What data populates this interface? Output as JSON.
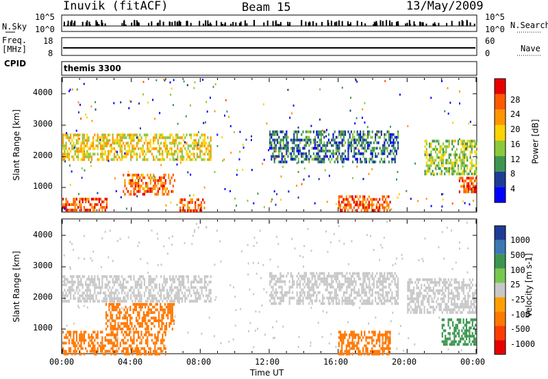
{
  "header": {
    "station": "Inuvik (fitACF)",
    "beam": "Beam 15",
    "date": "13/May/2009"
  },
  "panels": {
    "nsky_label": "N.Sky",
    "nsky_ticks": [
      "10^5",
      "10^0"
    ],
    "nsearch_label": "N.Search",
    "nsearch_ticks": [
      "10^5",
      "10^0"
    ],
    "freq_label_1": "Freq.",
    "freq_label_2": "[MHz]",
    "freq_ticks": [
      "18",
      "8"
    ],
    "nave_label": "Nave",
    "nave_ticks": [
      "60",
      "0"
    ],
    "cpid_label": "CPID",
    "cpid_value": "themis 3300"
  },
  "x_axis": {
    "label": "Time UT",
    "ticks": [
      "00:00",
      "04:00",
      "08:00",
      "12:00",
      "16:00",
      "20:00",
      "00:00"
    ]
  },
  "power_colorbar": {
    "label": "Power [dB]",
    "ticks": [
      "28",
      "24",
      "20",
      "16",
      "12",
      "8",
      "4"
    ],
    "colors": [
      "#e60000",
      "#ff5a00",
      "#ff9600",
      "#ffd200",
      "#8cc83c",
      "#3c9650",
      "#1e3c96",
      "#0000ff"
    ]
  },
  "velocity_colorbar": {
    "label": "Velocity [m s-1]",
    "ticks": [
      "1000",
      "500",
      "100",
      "25",
      "-25",
      "-100",
      "-500",
      "-1000"
    ],
    "colors": [
      "#1e3c96",
      "#3c78b4",
      "#3c9650",
      "#78c850",
      "#c8c8c8",
      "#ffa000",
      "#ff7800",
      "#ff3c00",
      "#e60000"
    ]
  },
  "chart_data": [
    {
      "type": "heatmap",
      "title": "",
      "xlabel": "Time UT",
      "ylabel": "Slant Range [km]",
      "y_ticks": [
        "1000",
        "2000",
        "3000",
        "4000"
      ],
      "xlim_hours": [
        0,
        24
      ],
      "ylim_km": [
        180,
        4500
      ],
      "colorbar": "Power [dB]",
      "features": [
        {
          "t_start": 0.0,
          "t_end": 2.6,
          "r_start": 180,
          "r_end": 620,
          "value_db": 26
        },
        {
          "t_start": 0.0,
          "t_end": 8.6,
          "r_start": 1900,
          "r_end": 2700,
          "value_db": 18
        },
        {
          "t_start": 3.5,
          "t_end": 6.5,
          "r_start": 700,
          "r_end": 1400,
          "value_db": 25
        },
        {
          "t_start": 6.8,
          "t_end": 8.2,
          "r_start": 180,
          "r_end": 600,
          "value_db": 26
        },
        {
          "t_start": 12.0,
          "t_end": 19.5,
          "r_start": 1800,
          "r_end": 2800,
          "value_db": 8
        },
        {
          "t_start": 16.0,
          "t_end": 19.0,
          "r_start": 180,
          "r_end": 700,
          "value_db": 26
        },
        {
          "t_start": 21.0,
          "t_end": 24.0,
          "r_start": 1400,
          "r_end": 2500,
          "value_db": 14
        },
        {
          "t_start": 23.0,
          "t_end": 24.0,
          "r_start": 800,
          "r_end": 1300,
          "value_db": 26
        }
      ]
    },
    {
      "type": "heatmap",
      "title": "",
      "xlabel": "Time UT",
      "ylabel": "Slant Range [km]",
      "y_ticks": [
        "1000",
        "2000",
        "3000",
        "4000"
      ],
      "xlim_hours": [
        0,
        24
      ],
      "ylim_km": [
        180,
        4500
      ],
      "colorbar": "Velocity [m s-1]",
      "features": [
        {
          "t_start": 0.0,
          "t_end": 8.6,
          "r_start": 1900,
          "r_end": 2700,
          "value_ms": 0
        },
        {
          "t_start": 0.0,
          "t_end": 6.0,
          "r_start": 180,
          "r_end": 900,
          "value_ms": -150
        },
        {
          "t_start": 2.5,
          "t_end": 6.5,
          "r_start": 1000,
          "r_end": 1800,
          "value_ms": -150
        },
        {
          "t_start": 12.0,
          "t_end": 19.5,
          "r_start": 1800,
          "r_end": 2800,
          "value_ms": 0
        },
        {
          "t_start": 16.0,
          "t_end": 19.0,
          "r_start": 180,
          "r_end": 900,
          "value_ms": -300
        },
        {
          "t_start": 20.0,
          "t_end": 24.0,
          "r_start": 1500,
          "r_end": 2600,
          "value_ms": 0
        },
        {
          "t_start": 22.0,
          "t_end": 24.0,
          "r_start": 500,
          "r_end": 1300,
          "value_ms": 300
        }
      ]
    }
  ]
}
